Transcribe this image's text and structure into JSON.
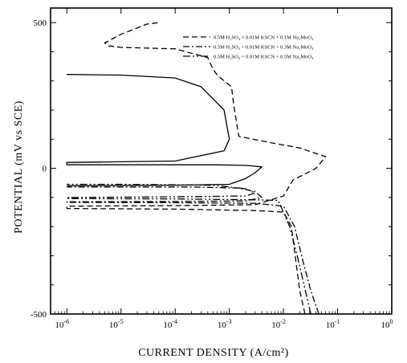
{
  "chart_data": {
    "type": "line",
    "xlabel": "CURRENT DENSITY (A/cm²)",
    "ylabel": "POTENTIAL (mV vs SCE)",
    "x_scale": "log",
    "xlim": [
      5e-07,
      1
    ],
    "ylim": [
      -500,
      550
    ],
    "x_ticks": [
      {
        "v": 1e-06,
        "m": "10",
        "e": "-6"
      },
      {
        "v": 1e-05,
        "m": "10",
        "e": "-5"
      },
      {
        "v": 0.0001,
        "m": "10",
        "e": "-4"
      },
      {
        "v": 0.001,
        "m": "10",
        "e": "-3"
      },
      {
        "v": 0.01,
        "m": "10",
        "e": "-2"
      },
      {
        "v": 0.1,
        "m": "10",
        "e": "-1"
      },
      {
        "v": 1,
        "m": "10",
        "e": "0"
      }
    ],
    "y_ticks": [
      {
        "v": 500,
        "label": "500"
      },
      {
        "v": 0,
        "label": "0"
      },
      {
        "v": -500,
        "label": "-500"
      }
    ],
    "legend_position": "top-right",
    "series": [
      {
        "name": "0.5M H₂SO₄ + 0.01M KSCN + 0.1M Na₂MoO₄",
        "dash": "7,4",
        "forward": [
          [
            0.025,
            -500
          ],
          [
            0.02,
            -420
          ],
          [
            0.017,
            -320
          ],
          [
            0.014,
            -200
          ],
          [
            0.01,
            -150
          ],
          [
            0.003,
            -145
          ],
          [
            0.0001,
            -140
          ],
          [
            1e-06,
            -138
          ]
        ],
        "reverse": [
          [
            1e-06,
            -130
          ],
          [
            0.0001,
            -128
          ],
          [
            0.003,
            -125
          ],
          [
            0.01,
            -95
          ],
          [
            0.015,
            -40
          ],
          [
            0.04,
            0
          ],
          [
            0.06,
            40
          ],
          [
            0.02,
            70
          ],
          [
            0.005,
            90
          ],
          [
            0.0015,
            110
          ],
          [
            0.0012,
            220
          ],
          [
            0.0011,
            280
          ],
          [
            0.0008,
            300
          ],
          [
            0.0006,
            320
          ],
          [
            0.0005,
            340
          ],
          [
            0.0004,
            380
          ],
          [
            0.0001,
            410
          ],
          [
            1e-05,
            415
          ],
          [
            6e-06,
            420
          ],
          [
            5e-06,
            430
          ],
          [
            1e-05,
            460
          ],
          [
            3e-05,
            495
          ],
          [
            5e-05,
            500
          ]
        ]
      },
      {
        "name": "0.5M H₂SO₄ + 0.01M KSCN + 0.3M Na₂MoO₄",
        "dash": "8,3,2,3",
        "forward": [
          [
            0.045,
            -500
          ],
          [
            0.032,
            -420
          ],
          [
            0.023,
            -320
          ],
          [
            0.016,
            -200
          ],
          [
            0.01,
            -130
          ],
          [
            0.003,
            -120
          ],
          [
            0.0001,
            -118
          ],
          [
            1e-06,
            -117
          ]
        ],
        "reverse": [
          [
            1e-06,
            -115
          ],
          [
            0.0001,
            -114
          ],
          [
            0.002,
            -112
          ],
          [
            0.004,
            -100
          ],
          [
            0.003,
            -80
          ],
          [
            0.0015,
            -68
          ],
          [
            0.0002,
            -64
          ],
          [
            1e-05,
            -64
          ],
          [
            1e-06,
            -64
          ]
        ]
      },
      {
        "name": "0.5M H₂SO₄ + 0.01M KSCN + 0.5M Na₂MoO₄",
        "dash": "9,3,2,3,2,3",
        "forward": [
          [
            0.032,
            -500
          ],
          [
            0.024,
            -400
          ],
          [
            0.018,
            -300
          ],
          [
            0.013,
            -200
          ],
          [
            0.008,
            -110
          ],
          [
            0.003,
            -108
          ],
          [
            0.0001,
            -105
          ],
          [
            1e-06,
            -104
          ]
        ],
        "reverse": [
          [
            1e-06,
            -100
          ],
          [
            0.0001,
            -98
          ],
          [
            0.002,
            -95
          ],
          [
            0.003,
            -85
          ],
          [
            0.002,
            -70
          ],
          [
            0.0005,
            -58
          ],
          [
            1e-05,
            -55
          ],
          [
            1e-06,
            -55
          ]
        ]
      },
      {
        "name": "",
        "dash": "",
        "forward": [
          [
            1e-06,
            -60
          ],
          [
            0.0001,
            -58
          ],
          [
            0.001,
            -55
          ],
          [
            0.002,
            -35
          ],
          [
            0.003,
            -15
          ],
          [
            0.004,
            5
          ],
          [
            0.002,
            10
          ],
          [
            0.0005,
            12
          ],
          [
            1e-05,
            12
          ],
          [
            1e-06,
            12
          ]
        ],
        "reverse": [
          [
            1e-06,
            20
          ],
          [
            0.0001,
            25
          ],
          [
            0.0008,
            60
          ],
          [
            0.001,
            100
          ],
          [
            0.0008,
            200
          ],
          [
            0.0003,
            280
          ],
          [
            0.0001,
            310
          ],
          [
            1e-05,
            320
          ],
          [
            1e-06,
            322
          ]
        ]
      }
    ],
    "legend": [
      {
        "line1": "0.5M H₂SO₄ + 0.01M KSCN + 0.1M Na₂MoO₄",
        "dash": "7,4"
      },
      {
        "line1": "0.5M H₂SO₄ + 0.01M KSCN + 0.3M Na₂MoO₄",
        "dash": "8,3,2,3"
      },
      {
        "line1": "0.5M H₂SO₄ + 0.01M KSCN + 0.5M Na₂MoO₄",
        "dash": "9,3,2,3,2,3"
      }
    ]
  }
}
